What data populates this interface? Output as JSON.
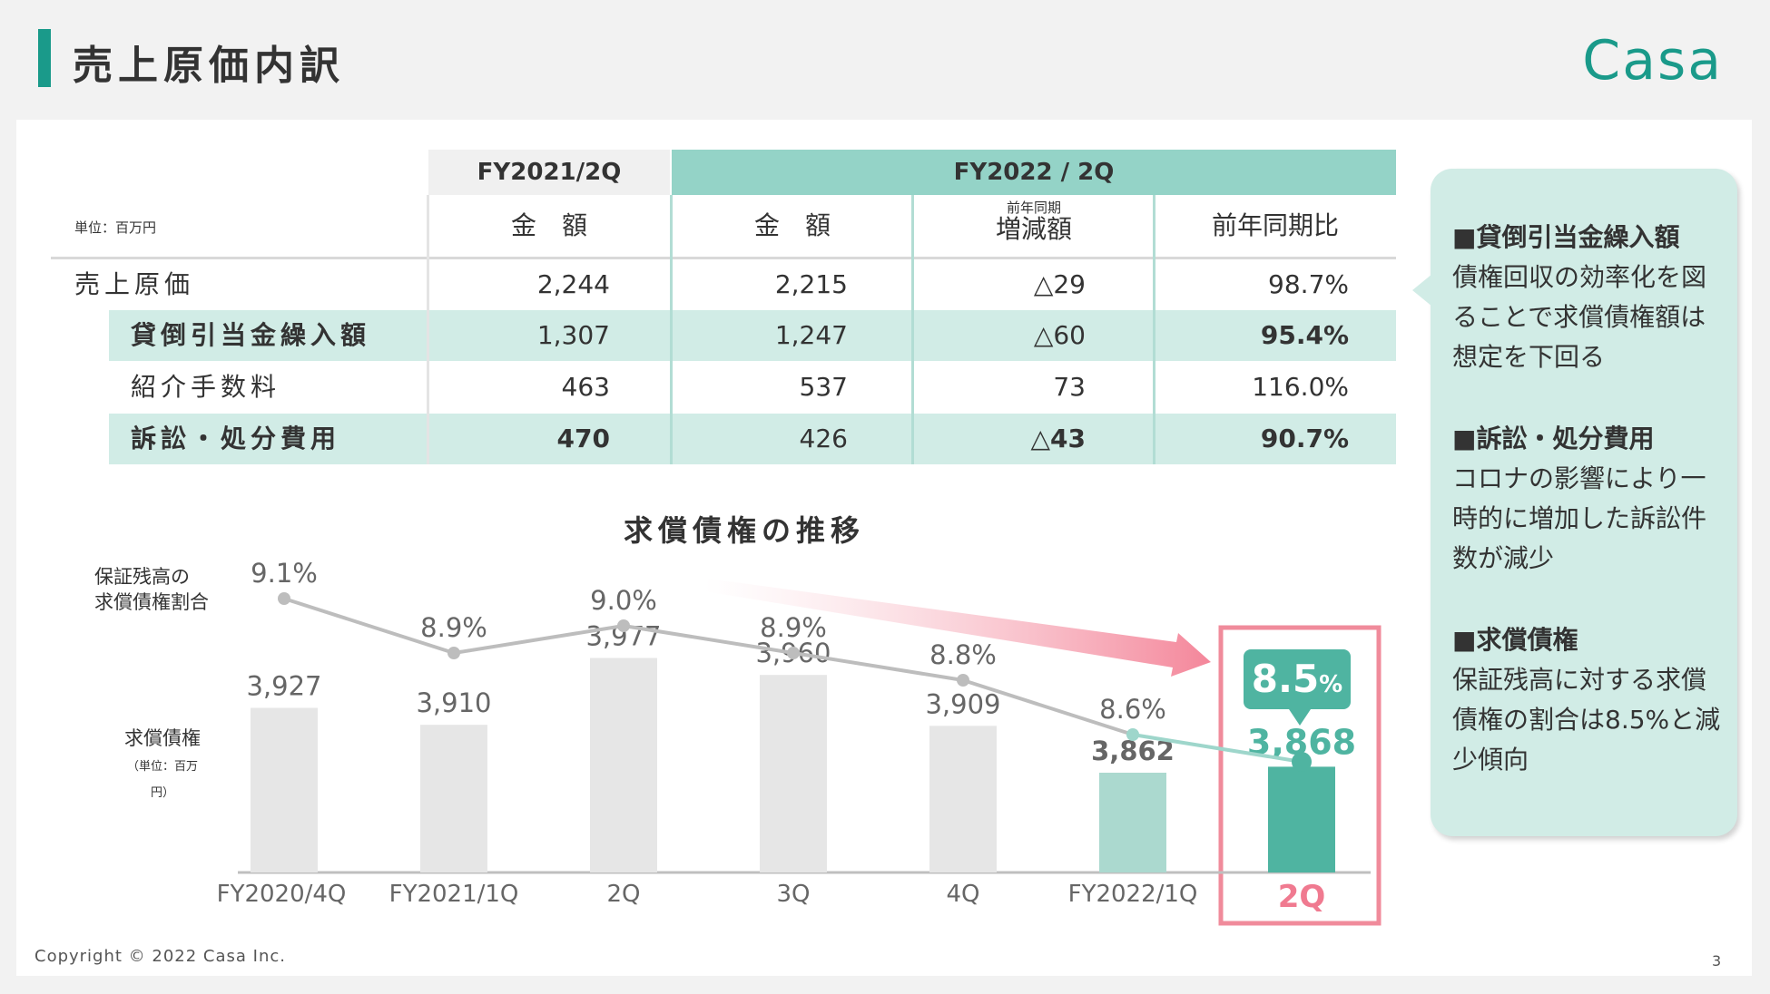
{
  "header": {
    "title": "売上原価内訳",
    "logo": "Casa"
  },
  "table": {
    "unit": "単位：百万円",
    "fy21_header": "FY2021/2Q",
    "fy22_header": "FY2022 / 2Q",
    "columns": {
      "amount21": "金　額",
      "amount22": "金　額",
      "change_top": "前年同期",
      "change_bot": "増減額",
      "ratio": "前年同期比"
    },
    "rows": [
      {
        "label": "売上原価",
        "fy21": "2,244",
        "fy22": "2,215",
        "change": "△29",
        "ratio": "98.7%"
      },
      {
        "label": "貸倒引当金繰入額",
        "fy21": "1,307",
        "fy22": "1,247",
        "change": "△60",
        "ratio": "95.4%"
      },
      {
        "label": "紹介手数料",
        "fy21": "463",
        "fy22": "537",
        "change": "73",
        "ratio": "116.0%"
      },
      {
        "label": "訴訟・処分費用",
        "fy21": "470",
        "fy22": "426",
        "change": "△43",
        "ratio": "90.7%"
      }
    ]
  },
  "chart_labels": {
    "title": "求償債権の推移",
    "ratio_label_1": "保証残高の",
    "ratio_label_2": "求償債権割合",
    "bar_label": "求償債権",
    "bar_unit": "（単位：百万円）",
    "highlight_pct_value": "8.5",
    "highlight_pct_unit": "%"
  },
  "chart_data": {
    "type": "bar",
    "title": "求償債権の推移",
    "categories": [
      "FY2020/4Q",
      "FY2021/1Q",
      "2Q",
      "3Q",
      "4Q",
      "FY2022/1Q",
      "2Q"
    ],
    "series": [
      {
        "name": "求償債権",
        "values": [
          3927,
          3910,
          3977,
          3960,
          3909,
          3862,
          3868
        ]
      },
      {
        "name": "保証残高の求償債権割合",
        "values": [
          9.1,
          8.9,
          9.0,
          8.9,
          8.8,
          8.6,
          8.5
        ]
      }
    ],
    "bar_labels": [
      "3,927",
      "3,910",
      "3,977",
      "3,960",
      "3,909",
      "3,862",
      "3,868"
    ],
    "line_labels": [
      "9.1%",
      "8.9%",
      "9.0%",
      "8.9%",
      "8.8%",
      "8.6%",
      ""
    ],
    "y_unit": "百万円"
  },
  "colors": {
    "accent": "#1a9a8a",
    "bar_gray": "#e6e6e6",
    "bar_light_teal": "#abd9cf",
    "bar_teal": "#4fb4a1",
    "highlight_red": "#f08b9b"
  },
  "notes": [
    {
      "heading": "■貸倒引当金繰入額",
      "body": "債権回収の効率化を図ることで求償債権額は想定を下回る"
    },
    {
      "heading": "■訴訟・処分費用",
      "body": "コロナの影響により一時的に増加した訴訟件数が減少"
    },
    {
      "heading": "■求償債権",
      "body": "保証残高に対する求償債権の割合は8.5%と減少傾向"
    }
  ],
  "footer": {
    "copyright": "Copyright © 2022 Casa Inc.",
    "page": "3"
  }
}
